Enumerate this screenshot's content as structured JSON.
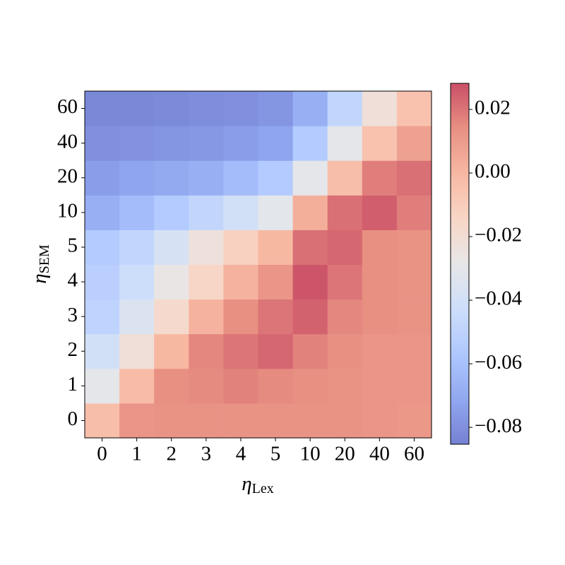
{
  "chart_data": {
    "type": "heatmap",
    "x_label": {
      "symbol": "η",
      "subscript": "Lex"
    },
    "y_label": {
      "symbol": "η",
      "subscript": "SEM"
    },
    "x_categories": [
      "0",
      "1",
      "2",
      "3",
      "4",
      "5",
      "10",
      "20",
      "40",
      "60"
    ],
    "y_categories": [
      "0",
      "1",
      "2",
      "3",
      "4",
      "5",
      "10",
      "20",
      "40",
      "60"
    ],
    "values": [
      [
        -0.003,
        0.012,
        0.013,
        0.013,
        0.013,
        0.013,
        0.013,
        0.013,
        0.012,
        0.011
      ],
      [
        -0.03,
        -0.002,
        0.014,
        0.015,
        0.017,
        0.015,
        0.014,
        0.013,
        0.012,
        0.012
      ],
      [
        -0.04,
        -0.022,
        0.0,
        0.016,
        0.02,
        0.023,
        0.017,
        0.014,
        0.012,
        0.012
      ],
      [
        -0.05,
        -0.035,
        -0.017,
        0.002,
        0.014,
        0.02,
        0.024,
        0.016,
        0.014,
        0.013
      ],
      [
        -0.052,
        -0.043,
        -0.027,
        -0.015,
        0.002,
        0.012,
        0.027,
        0.02,
        0.014,
        0.013
      ],
      [
        -0.055,
        -0.048,
        -0.038,
        -0.023,
        -0.012,
        0.0,
        0.021,
        0.023,
        0.014,
        0.013
      ],
      [
        -0.068,
        -0.062,
        -0.055,
        -0.048,
        -0.04,
        -0.031,
        0.003,
        0.021,
        0.025,
        0.018
      ],
      [
        -0.075,
        -0.072,
        -0.07,
        -0.068,
        -0.062,
        -0.055,
        -0.03,
        -0.003,
        0.018,
        0.021
      ],
      [
        -0.08,
        -0.079,
        -0.078,
        -0.077,
        -0.075,
        -0.072,
        -0.055,
        -0.03,
        -0.005,
        0.008
      ],
      [
        -0.083,
        -0.083,
        -0.082,
        -0.081,
        -0.08,
        -0.078,
        -0.068,
        -0.048,
        -0.022,
        -0.005
      ]
    ],
    "colormap": "coolwarm",
    "clim": [
      -0.0853,
      0.0282
    ],
    "cticks": [
      {
        "value": -0.08,
        "label": "−0.08"
      },
      {
        "value": -0.06,
        "label": "−0.06"
      },
      {
        "value": -0.04,
        "label": "−0.04"
      },
      {
        "value": -0.02,
        "label": "−0.02"
      },
      {
        "value": 0,
        "label": "0.00"
      },
      0.02
    ]
  }
}
